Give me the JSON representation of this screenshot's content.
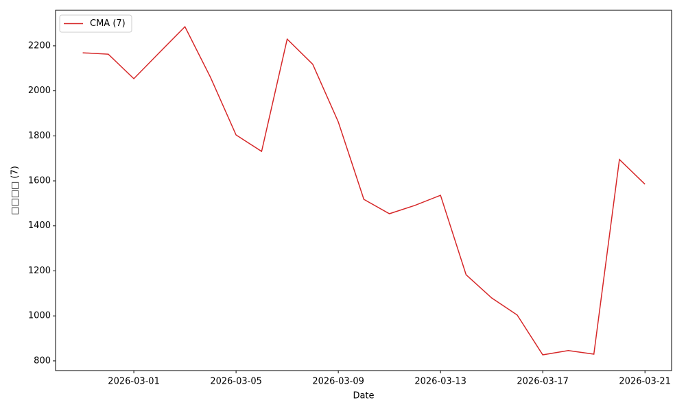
{
  "chart_data": {
    "type": "line",
    "xlabel": "Date",
    "ylabel": "□□□□ (7)",
    "x": [
      "2026-02-27",
      "2026-02-28",
      "2026-03-01",
      "2026-03-02",
      "2026-03-03",
      "2026-03-04",
      "2026-03-05",
      "2026-03-06",
      "2026-03-07",
      "2026-03-08",
      "2026-03-09",
      "2026-03-10",
      "2026-03-11",
      "2026-03-12",
      "2026-03-13",
      "2026-03-14",
      "2026-03-15",
      "2026-03-16",
      "2026-03-17",
      "2026-03-18",
      "2026-03-19",
      "2026-03-20",
      "2026-03-21"
    ],
    "series": [
      {
        "name": "CMA (7)",
        "color": "#d62728",
        "values": [
          2169,
          2163,
          2054,
          2170,
          2285,
          2060,
          1804,
          1731,
          2230,
          2118,
          1862,
          1518,
          1454,
          1491,
          1536,
          1183,
          1080,
          1004,
          827,
          846,
          830,
          1695,
          1585
        ]
      }
    ],
    "xlim": [
      "2026-02-25T22:30",
      "2026-03-22T01:00"
    ],
    "xticks": [
      "2026-03-01",
      "2026-03-05",
      "2026-03-09",
      "2026-03-13",
      "2026-03-17",
      "2026-03-21"
    ],
    "ylim": [
      757,
      2358
    ],
    "yticks": [
      800,
      1000,
      1200,
      1400,
      1600,
      1800,
      2000,
      2200
    ],
    "grid": false,
    "legend": "upper left"
  }
}
